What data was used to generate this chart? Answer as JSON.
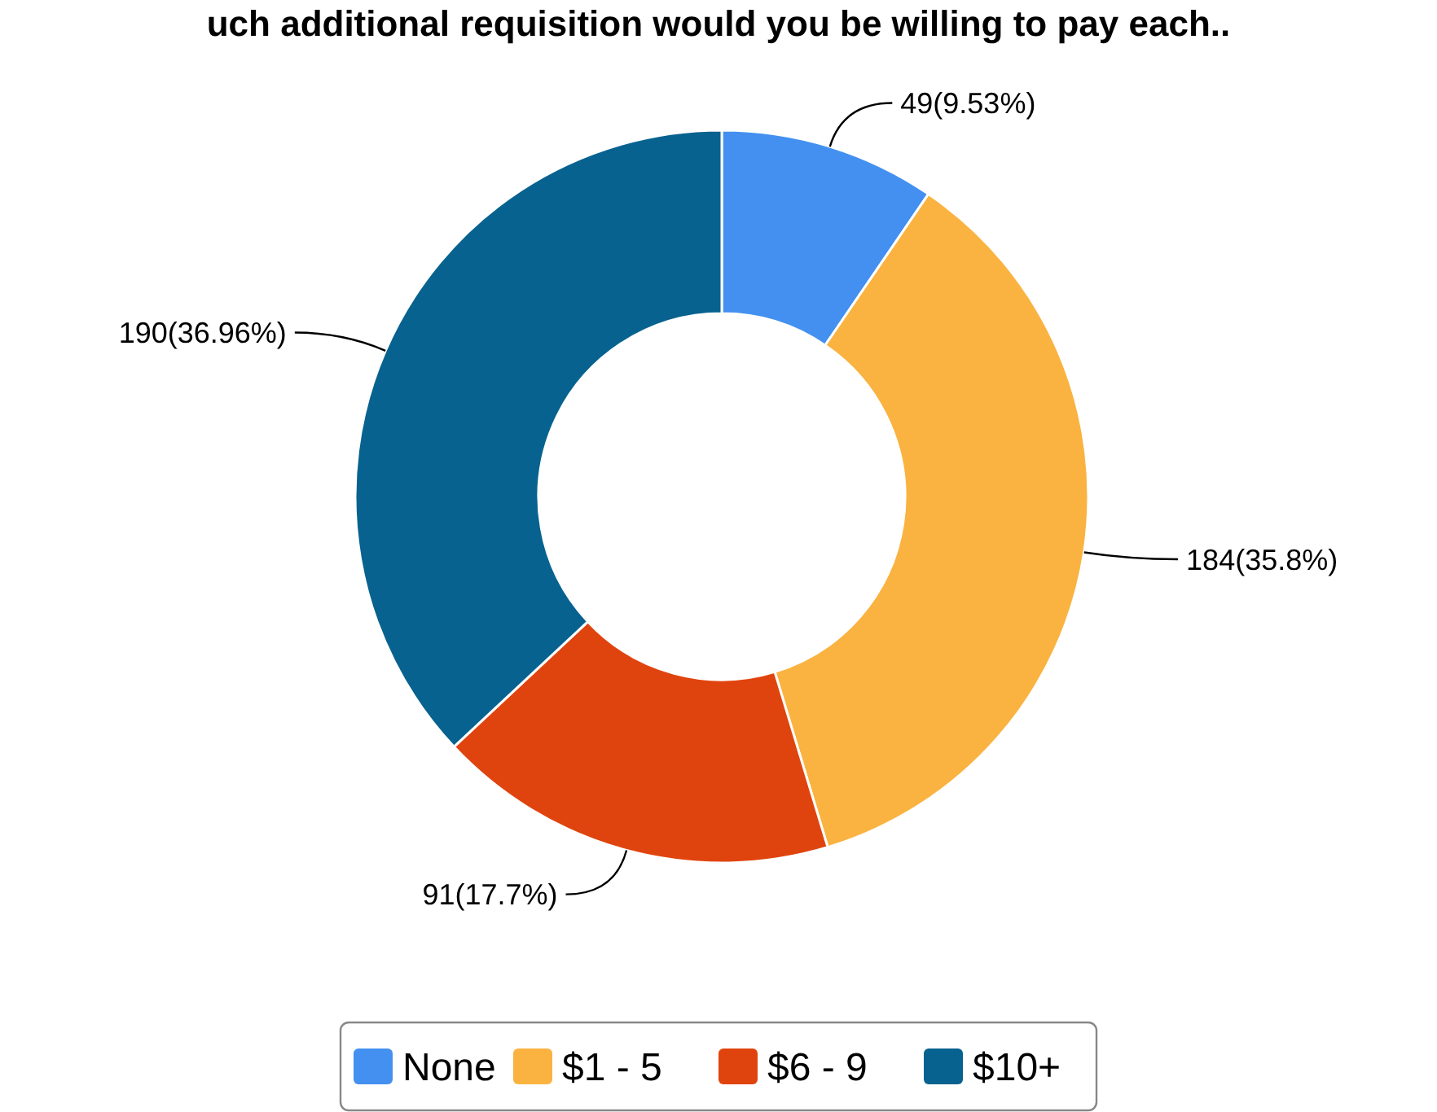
{
  "chart_data": {
    "type": "donut",
    "title": "uch additional requisition would you be willing to pay each..",
    "categories": [
      "None",
      "$1 - 5",
      "$6 - 9",
      "$10+"
    ],
    "values": [
      49,
      184,
      91,
      190
    ],
    "colors": [
      "#4390f0",
      "#fab340",
      "#e0440e",
      "#07628f"
    ],
    "value_labels": [
      "49(9.53%)",
      "184(35.8%)",
      "91(17.7%)",
      "190(36.96%)"
    ],
    "legend": "bottom"
  }
}
